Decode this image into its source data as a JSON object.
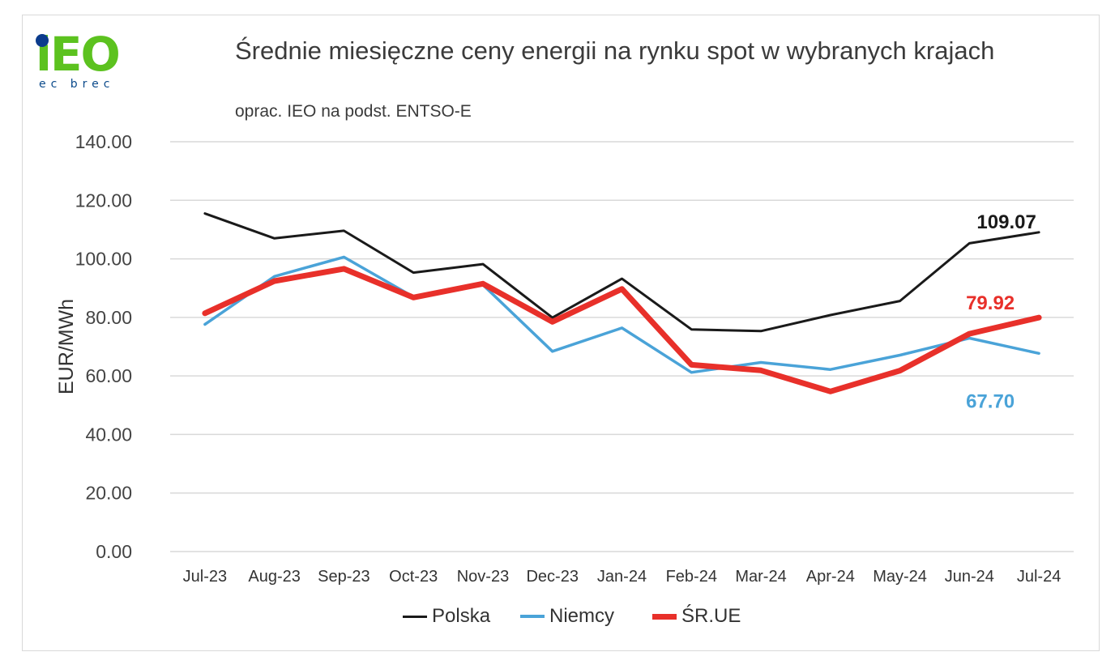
{
  "logo": {
    "word": "iEO",
    "sub": "ec brec"
  },
  "header": {
    "title": "Średnie miesięczne ceny energii na rynku spot w wybranych krajach",
    "subtitle": "oprac. IEO na podst. ENTSO-E"
  },
  "colors": {
    "polska": "#1a1a1a",
    "niemcy": "#4aa3d8",
    "srue": "#e8302a",
    "grid": "#d9d9d9"
  },
  "chart_data": {
    "type": "line",
    "title": "Średnie miesięczne ceny energii na rynku spot w wybranych krajach",
    "subtitle": "oprac. IEO na podst. ENTSO-E",
    "xlabel": "",
    "ylabel": "EUR/MWh",
    "ylim": [
      0,
      140
    ],
    "yticks": [
      "0.00",
      "20.00",
      "40.00",
      "60.00",
      "80.00",
      "100.00",
      "120.00",
      "140.00"
    ],
    "categories": [
      "Jul-23",
      "Aug-23",
      "Sep-23",
      "Oct-23",
      "Nov-23",
      "Dec-23",
      "Jan-24",
      "Feb-24",
      "Mar-24",
      "Apr-24",
      "May-24",
      "Jun-24",
      "Jul-24"
    ],
    "grid": true,
    "legend_position": "bottom",
    "series": [
      {
        "name": "Polska",
        "values": [
          115.5,
          107.0,
          109.6,
          95.3,
          98.2,
          79.9,
          93.2,
          75.9,
          75.3,
          80.8,
          85.6,
          105.3,
          109.07
        ],
        "end_label": "109.07"
      },
      {
        "name": "Niemcy",
        "values": [
          77.6,
          94.0,
          100.6,
          87.0,
          91.1,
          68.4,
          76.4,
          61.2,
          64.6,
          62.2,
          67.1,
          72.9,
          67.7
        ],
        "end_label": "67.70"
      },
      {
        "name": "ŚR.UE",
        "values": [
          81.4,
          92.4,
          96.6,
          86.8,
          91.5,
          78.5,
          89.7,
          63.8,
          61.9,
          54.7,
          61.8,
          74.4,
          79.92
        ],
        "end_label": "79.92"
      }
    ]
  }
}
